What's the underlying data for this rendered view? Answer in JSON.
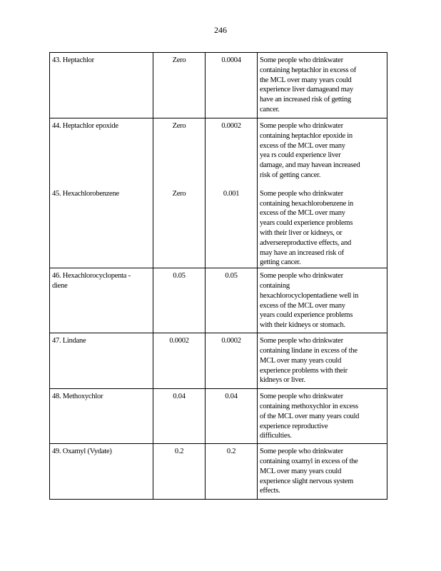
{
  "page_number": "246",
  "rows": [
    {
      "entries": [
        {
          "name": [
            "43.  Heptachlor"
          ],
          "mclg": "Zero",
          "mcl": "0.0004",
          "effects": [
            "Some people who drinkwater",
            "containing heptachlor in excess of",
            "the MCL over many years could",
            "experience liver damageand may",
            "have an increased risk of getting",
            "cancer."
          ]
        }
      ]
    },
    {
      "entries": [
        {
          "name": [
            "44.  Heptachlor   epoxide"
          ],
          "mclg": "Zero",
          "mcl": "0.0002",
          "effects": [
            "Some people who drinkwater",
            "containing heptachlor epoxide in",
            "excess of the MCL over many",
            "yea rs could experience liver",
            "damage, and may havean increased",
            "risk of getting cancer."
          ]
        },
        {
          "name": [
            "45.  Hexachlorobenzene"
          ],
          "mclg": "Zero",
          "mcl": "0.001",
          "effects": [
            "Some people who drinkwater",
            "containing hexachlorobenzene in",
            "excess of the MCL over many",
            "years could experience problems",
            "with their liver or kidneys, or",
            "adversereproductive effects, and",
            "may have an increased risk of",
            "getting cancer."
          ]
        }
      ]
    },
    {
      "entries": [
        {
          "name": [
            "46.  Hexachlorocyclopenta        -",
            "diene"
          ],
          "mclg": "0.05",
          "mcl": "0.05",
          "effects": [
            "Some people who drinkwater",
            "containing",
            "hexachlorocyclopentadiene well in",
            "excess of the MCL over many",
            "years could experience problems",
            "with their kidneys or stomach."
          ]
        }
      ]
    },
    {
      "entries": [
        {
          "name": [
            "47.  Lindane"
          ],
          "mclg": "0.0002",
          "mcl": "0.0002",
          "effects": [
            "Some people who drinkwater",
            "containing lindane in excess of the",
            "MCL over many years could",
            "experience problems with their",
            "kidneys or liver."
          ]
        }
      ]
    },
    {
      "entries": [
        {
          "name": [
            "48.  Methoxychlor"
          ],
          "mclg": "0.04",
          "mcl": "0.04",
          "effects": [
            "Some people who drinkwater",
            "containing methoxychlor in excess",
            "of the MCL over many years could",
            "experience reproductive",
            "difficulties."
          ]
        }
      ]
    },
    {
      "entries": [
        {
          "name": [
            "49.  Oxamyl   (Vydate)"
          ],
          "mclg": "0.2",
          "mcl": "0.2",
          "effects": [
            "Some people who drinkwater",
            "containing oxamyl in excess of the",
            "MCL over many years could",
            "experience slight nervous system",
            "effects."
          ]
        }
      ]
    }
  ]
}
